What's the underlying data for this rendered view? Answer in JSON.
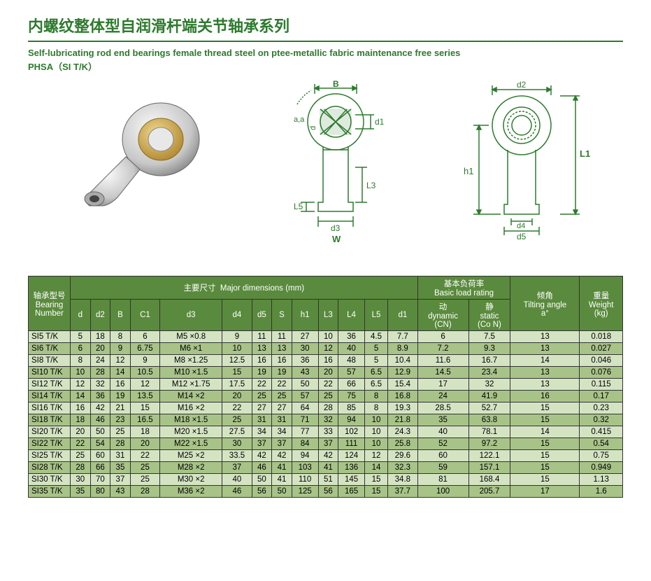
{
  "titles": {
    "cn": "内螺纹整体型自润滑杆端关节轴承系列",
    "en": "Self-lubricating rod end bearings female thread steel on ptee-metallic fabric maintenance free series",
    "code": "PHSA（SI  T/K）"
  },
  "diagram_labels": {
    "B": "B",
    "d1": "d1",
    "d": "d",
    "a": "a,a",
    "L3": "L3",
    "L5": "L5",
    "d3": "d3",
    "W": "W",
    "d2": "d2",
    "h1": "h1",
    "L1": "L1",
    "d4": "d4",
    "d5": "d5"
  },
  "table": {
    "header_groups": {
      "bearing_cn": "轴承型号",
      "bearing_en": "Bearing Number",
      "major_cn": "主要尺寸",
      "major_en": "Major dimensions (mm)",
      "load_cn": "基本负荷率",
      "load_en": "Basic load rating",
      "tilt_cn": "倾角",
      "tilt_en": "Tilting angle",
      "tilt_unit": "a°",
      "weight_cn": "重量",
      "weight_en": "Weight",
      "weight_unit": "(kg)",
      "dyn_cn": "动",
      "dyn_en": "dynamic",
      "dyn_unit": "(CN)",
      "stat_cn": "静",
      "stat_en": "static",
      "stat_unit": "(Co N)"
    },
    "columns": [
      "d",
      "d2",
      "B",
      "C1",
      "d3",
      "d4",
      "d5",
      "S",
      "h1",
      "L3",
      "L4",
      "L5",
      "d1"
    ],
    "rows": [
      {
        "n": "SI5 T/K",
        "d": "5",
        "d2": "18",
        "B": "8",
        "C1": "6",
        "d3": "M5 ×0.8",
        "d4": "9",
        "d5": "11",
        "S": "11",
        "h1": "27",
        "L3": "10",
        "L4": "36",
        "L5": "4.5",
        "d1v": "7.7",
        "dyn": "6",
        "stat": "7.5",
        "tilt": "13",
        "wt": "0.018"
      },
      {
        "n": "SI6 T/K",
        "d": "6",
        "d2": "20",
        "B": "9",
        "C1": "6.75",
        "d3": "M6 ×1",
        "d4": "10",
        "d5": "13",
        "S": "13",
        "h1": "30",
        "L3": "12",
        "L4": "40",
        "L5": "5",
        "d1v": "8.9",
        "dyn": "7.2",
        "stat": "9.3",
        "tilt": "13",
        "wt": "0.027"
      },
      {
        "n": "SI8 T/K",
        "d": "8",
        "d2": "24",
        "B": "12",
        "C1": "9",
        "d3": "M8 ×1.25",
        "d4": "12.5",
        "d5": "16",
        "S": "16",
        "h1": "36",
        "L3": "16",
        "L4": "48",
        "L5": "5",
        "d1v": "10.4",
        "dyn": "11.6",
        "stat": "16.7",
        "tilt": "14",
        "wt": "0.046"
      },
      {
        "n": "SI10 T/K",
        "d": "10",
        "d2": "28",
        "B": "14",
        "C1": "10.5",
        "d3": "M10 ×1.5",
        "d4": "15",
        "d5": "19",
        "S": "19",
        "h1": "43",
        "L3": "20",
        "L4": "57",
        "L5": "6.5",
        "d1v": "12.9",
        "dyn": "14.5",
        "stat": "23.4",
        "tilt": "13",
        "wt": "0.076"
      },
      {
        "n": "SI12 T/K",
        "d": "12",
        "d2": "32",
        "B": "16",
        "C1": "12",
        "d3": "M12 ×1.75",
        "d4": "17.5",
        "d5": "22",
        "S": "22",
        "h1": "50",
        "L3": "22",
        "L4": "66",
        "L5": "6.5",
        "d1v": "15.4",
        "dyn": "17",
        "stat": "32",
        "tilt": "13",
        "wt": "0.115"
      },
      {
        "n": "SI14 T/K",
        "d": "14",
        "d2": "36",
        "B": "19",
        "C1": "13.5",
        "d3": "M14 ×2",
        "d4": "20",
        "d5": "25",
        "S": "25",
        "h1": "57",
        "L3": "25",
        "L4": "75",
        "L5": "8",
        "d1v": "16.8",
        "dyn": "24",
        "stat": "41.9",
        "tilt": "16",
        "wt": "0.17"
      },
      {
        "n": "SI16 T/K",
        "d": "16",
        "d2": "42",
        "B": "21",
        "C1": "15",
        "d3": "M16 ×2",
        "d4": "22",
        "d5": "27",
        "S": "27",
        "h1": "64",
        "L3": "28",
        "L4": "85",
        "L5": "8",
        "d1v": "19.3",
        "dyn": "28.5",
        "stat": "52.7",
        "tilt": "15",
        "wt": "0.23"
      },
      {
        "n": "SI18 T/K",
        "d": "18",
        "d2": "46",
        "B": "23",
        "C1": "16.5",
        "d3": "M18 ×1.5",
        "d4": "25",
        "d5": "31",
        "S": "31",
        "h1": "71",
        "L3": "32",
        "L4": "94",
        "L5": "10",
        "d1v": "21.8",
        "dyn": "35",
        "stat": "63.8",
        "tilt": "15",
        "wt": "0.32"
      },
      {
        "n": "SI20 T/K",
        "d": "20",
        "d2": "50",
        "B": "25",
        "C1": "18",
        "d3": "M20 ×1.5",
        "d4": "27.5",
        "d5": "34",
        "S": "34",
        "h1": "77",
        "L3": "33",
        "L4": "102",
        "L5": "10",
        "d1v": "24.3",
        "dyn": "40",
        "stat": "78.1",
        "tilt": "14",
        "wt": "0.415"
      },
      {
        "n": "SI22 T/K",
        "d": "22",
        "d2": "54",
        "B": "28",
        "C1": "20",
        "d3": "M22 ×1.5",
        "d4": "30",
        "d5": "37",
        "S": "37",
        "h1": "84",
        "L3": "37",
        "L4": "111",
        "L5": "10",
        "d1v": "25.8",
        "dyn": "52",
        "stat": "97.2",
        "tilt": "15",
        "wt": "0.54"
      },
      {
        "n": "SI25 T/K",
        "d": "25",
        "d2": "60",
        "B": "31",
        "C1": "22",
        "d3": "M25 ×2",
        "d4": "33.5",
        "d5": "42",
        "S": "42",
        "h1": "94",
        "L3": "42",
        "L4": "124",
        "L5": "12",
        "d1v": "29.6",
        "dyn": "60",
        "stat": "122.1",
        "tilt": "15",
        "wt": "0.75"
      },
      {
        "n": "SI28 T/K",
        "d": "28",
        "d2": "66",
        "B": "35",
        "C1": "25",
        "d3": "M28 ×2",
        "d4": "37",
        "d5": "46",
        "S": "41",
        "h1": "103",
        "L3": "41",
        "L4": "136",
        "L5": "14",
        "d1v": "32.3",
        "dyn": "59",
        "stat": "157.1",
        "tilt": "15",
        "wt": "0.949"
      },
      {
        "n": "SI30 T/K",
        "d": "30",
        "d2": "70",
        "B": "37",
        "C1": "25",
        "d3": "M30 ×2",
        "d4": "40",
        "d5": "50",
        "S": "41",
        "h1": "110",
        "L3": "51",
        "L4": "145",
        "L5": "15",
        "d1v": "34.8",
        "dyn": "81",
        "stat": "168.4",
        "tilt": "15",
        "wt": "1.13"
      },
      {
        "n": "SI35 T/K",
        "d": "35",
        "d2": "80",
        "B": "43",
        "C1": "28",
        "d3": "M36 ×2",
        "d4": "46",
        "d5": "56",
        "S": "50",
        "h1": "125",
        "L3": "56",
        "L4": "165",
        "L5": "15",
        "d1v": "37.7",
        "dyn": "100",
        "stat": "205.7",
        "tilt": "17",
        "wt": "1.6"
      }
    ]
  },
  "colors": {
    "brand_green": "#2d7a2d",
    "table_header_bg": "#5a8a3d",
    "row_odd_bg": "#d4e4c3",
    "row_even_bg": "#a8c388",
    "diagram_stroke": "#2d7a2d"
  }
}
